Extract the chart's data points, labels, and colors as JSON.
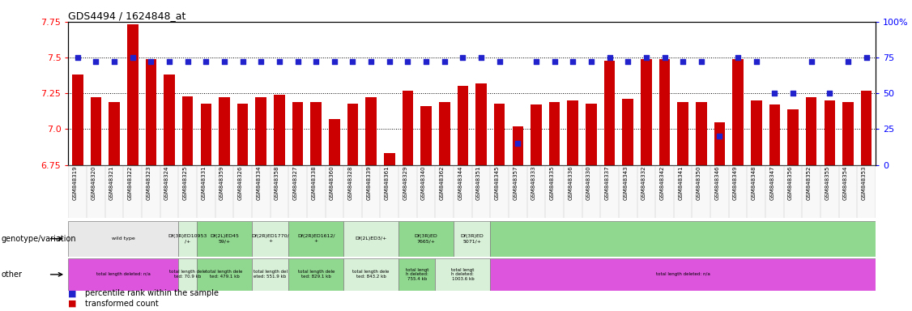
{
  "title": "GDS4494 / 1624848_at",
  "samples": [
    "GSM848319",
    "GSM848320",
    "GSM848321",
    "GSM848322",
    "GSM848323",
    "GSM848324",
    "GSM848325",
    "GSM848331",
    "GSM848359",
    "GSM848326",
    "GSM848334",
    "GSM848358",
    "GSM848327",
    "GSM848338",
    "GSM848360",
    "GSM848328",
    "GSM848339",
    "GSM848361",
    "GSM848329",
    "GSM848340",
    "GSM848362",
    "GSM848344",
    "GSM848351",
    "GSM848345",
    "GSM848357",
    "GSM848333",
    "GSM848335",
    "GSM848336",
    "GSM848330",
    "GSM848337",
    "GSM848343",
    "GSM848332",
    "GSM848342",
    "GSM848341",
    "GSM848350",
    "GSM848346",
    "GSM848349",
    "GSM848348",
    "GSM848347",
    "GSM848356",
    "GSM848352",
    "GSM848355",
    "GSM848354",
    "GSM848353"
  ],
  "bar_values": [
    7.38,
    7.22,
    7.19,
    7.73,
    7.49,
    7.38,
    7.23,
    7.18,
    7.22,
    7.18,
    7.22,
    7.24,
    7.19,
    7.19,
    7.07,
    7.18,
    7.22,
    6.83,
    7.27,
    7.16,
    7.19,
    7.3,
    7.32,
    7.18,
    7.02,
    7.17,
    7.19,
    7.2,
    7.18,
    7.48,
    7.21,
    7.49,
    7.49,
    7.19,
    7.19,
    7.05,
    7.49,
    7.2,
    7.17,
    7.14,
    7.22,
    7.2,
    7.19,
    7.27
  ],
  "percentile_values": [
    75,
    72,
    72,
    75,
    72,
    72,
    72,
    72,
    72,
    72,
    72,
    72,
    72,
    72,
    72,
    72,
    72,
    72,
    72,
    72,
    72,
    75,
    75,
    72,
    15,
    72,
    72,
    72,
    72,
    75,
    72,
    75,
    75,
    72,
    72,
    20,
    75,
    72,
    50,
    50,
    72,
    50,
    72,
    75
  ],
  "ylim_left": [
    6.75,
    7.75
  ],
  "ylim_right": [
    0,
    100
  ],
  "bar_color": "#cc0000",
  "percentile_color": "#2222cc",
  "bar_width": 0.6,
  "yticks_left": [
    6.75,
    7.0,
    7.25,
    7.5,
    7.75
  ],
  "yticks_right": [
    0,
    25,
    50,
    75,
    100
  ],
  "ytick_labels_right": [
    "0",
    "25",
    "50",
    "75",
    "100%"
  ],
  "geno_data": [
    [
      0,
      5,
      "#e8e8e8",
      "wild type"
    ],
    [
      6,
      6,
      "#d8f0d8",
      "Df(3R)ED10953\n/+"
    ],
    [
      7,
      9,
      "#90d890",
      "Df(2L)ED45\n59/+"
    ],
    [
      10,
      11,
      "#d8f0d8",
      "Df(2R)ED1770/\n+"
    ],
    [
      12,
      14,
      "#90d890",
      "Df(2R)ED1612/\n+"
    ],
    [
      15,
      17,
      "#d8f0d8",
      "Df(2L)ED3/+"
    ],
    [
      18,
      20,
      "#90d890",
      "Df(3R)ED\n7665/+"
    ],
    [
      21,
      22,
      "#d8f0d8",
      "Df(3R)ED\n5071/+"
    ],
    [
      23,
      43,
      "#90d890",
      ""
    ]
  ],
  "other_data": [
    [
      0,
      5,
      "#dd55dd",
      "total length deleted: n/a"
    ],
    [
      6,
      6,
      "#d8f0d8",
      "total length dele\nted: 70.9 kb"
    ],
    [
      7,
      9,
      "#90d890",
      "total length dele\nted: 479.1 kb"
    ],
    [
      10,
      11,
      "#d8f0d8",
      "total length del\neted: 551.9 kb"
    ],
    [
      12,
      14,
      "#90d890",
      "total length dele\nted: 829.1 kb"
    ],
    [
      15,
      17,
      "#d8f0d8",
      "total length dele\nted: 843.2 kb"
    ],
    [
      18,
      19,
      "#90d890",
      "total lengt\nh deleted:\n755.4 kb"
    ],
    [
      20,
      22,
      "#d8f0d8",
      "total lengt\nh deleted:\n1003.6 kb"
    ],
    [
      23,
      43,
      "#dd55dd",
      "total length deleted: n/a"
    ]
  ],
  "legend_bar_label": "transformed count",
  "legend_pct_label": "percentile rank within the sample",
  "genotype_label": "genotype/variation",
  "other_label": "other",
  "bg_color": "#ffffff"
}
